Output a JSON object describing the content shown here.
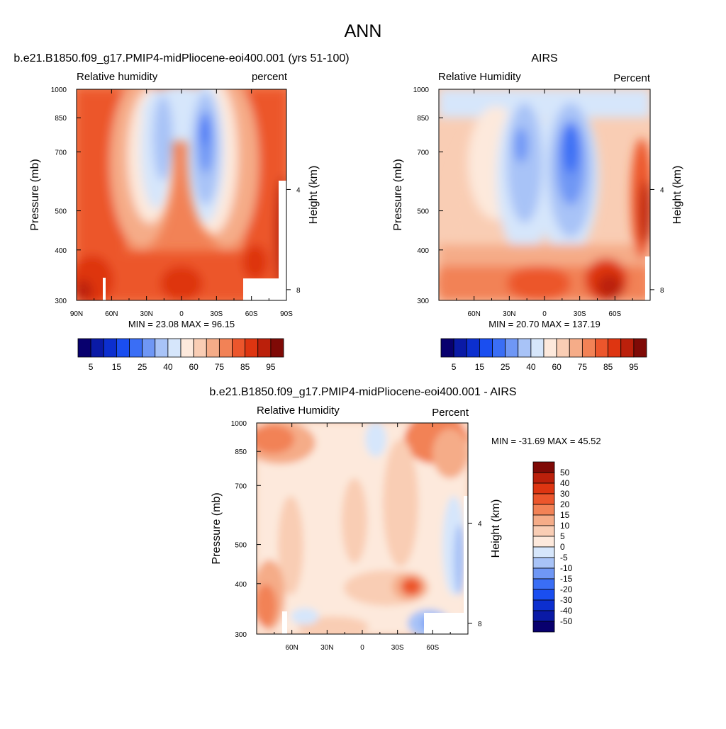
{
  "page_title": "ANN",
  "colors": {
    "rh_palette": [
      "#08006e",
      "#0a1aa6",
      "#0c2fcf",
      "#1a4ef0",
      "#3a6ef5",
      "#6f97f5",
      "#a8c3f7",
      "#d6e6fb",
      "#fde9dc",
      "#f9cdb4",
      "#f5ac88",
      "#f28256",
      "#ec562c",
      "#de3511",
      "#bb200b",
      "#7f0a06"
    ],
    "diff_palette": [
      "#08006e",
      "#0a1aa6",
      "#0c2fcf",
      "#1a4ef0",
      "#3a6ef5",
      "#6f97f5",
      "#a8c3f7",
      "#d6e6fb",
      "#fde9dc",
      "#f9cdb4",
      "#f5ac88",
      "#f28256",
      "#ec562c",
      "#de3511",
      "#bb200b",
      "#7f0a06"
    ]
  },
  "chart_data": [
    {
      "type": "heatmap",
      "id": "model",
      "title": "b.e21.B1850.f09_g17.PMIP4-midPliocene-eoi400.001 (yrs 51-100)",
      "left_label": "Relative humidity",
      "right_label": "percent",
      "xlabel": "",
      "ylabel": "Pressure (mb)",
      "y2label": "Height (km)",
      "x_ticklabels": [
        "90N",
        "60N",
        "30N",
        "0",
        "30S",
        "60S",
        "90S"
      ],
      "x_ticks": [
        90,
        60,
        30,
        0,
        -30,
        -60,
        -90
      ],
      "xlim": [
        90,
        -90
      ],
      "y_ticks": [
        300,
        400,
        500,
        700,
        850,
        1000
      ],
      "y_ticklabels": [
        "300",
        "400",
        "500",
        "700",
        "850",
        "1000"
      ],
      "ylim": [
        1000,
        300
      ],
      "y2_ticks": [
        8,
        4
      ],
      "y2_ticklabels": [
        "8",
        "4"
      ],
      "stats": "MIN =  23.08  MAX =  96.15",
      "levels": [
        "5",
        "15",
        "25",
        "40",
        "60",
        "75",
        "85",
        "95"
      ],
      "levels_units": "percent"
    },
    {
      "type": "heatmap",
      "id": "obs",
      "title": "AIRS",
      "left_label": "Relative Humidity",
      "right_label": "Percent",
      "ylabel": "Pressure (mb)",
      "y2label": "Height (km)",
      "x_ticklabels": [
        "60N",
        "30N",
        "0",
        "30S",
        "60S"
      ],
      "x_ticks": [
        60,
        30,
        0,
        -30,
        -60
      ],
      "xlim": [
        90,
        -90
      ],
      "y_ticks": [
        300,
        400,
        500,
        700,
        850,
        1000
      ],
      "y_ticklabels": [
        "300",
        "400",
        "500",
        "700",
        "850",
        "1000"
      ],
      "ylim": [
        1000,
        300
      ],
      "y2_ticks": [
        8,
        4
      ],
      "y2_ticklabels": [
        "8",
        "4"
      ],
      "stats": "MIN =  20.70  MAX = 137.19",
      "levels": [
        "5",
        "15",
        "25",
        "40",
        "60",
        "75",
        "85",
        "95"
      ]
    },
    {
      "type": "heatmap",
      "id": "diff",
      "title": "b.e21.B1850.f09_g17.PMIP4-midPliocene-eoi400.001 - AIRS",
      "left_label": "Relative Humidity",
      "right_label": "Percent",
      "ylabel": "Pressure (mb)",
      "y2label": "Height (km)",
      "x_ticklabels": [
        "60N",
        "30N",
        "0",
        "30S",
        "60S"
      ],
      "x_ticks": [
        60,
        30,
        0,
        -30,
        -60
      ],
      "xlim": [
        90,
        -90
      ],
      "y_ticks": [
        300,
        400,
        500,
        700,
        850,
        1000
      ],
      "y_ticklabels": [
        "300",
        "400",
        "500",
        "700",
        "850",
        "1000"
      ],
      "ylim": [
        1000,
        300
      ],
      "y2_ticks": [
        8,
        4
      ],
      "y2_ticklabels": [
        "8",
        "4"
      ],
      "stats": "MIN = -31.69  MAX =  45.52",
      "levels": [
        "50",
        "40",
        "30",
        "20",
        "15",
        "10",
        "5",
        "0",
        "-5",
        "-10",
        "-15",
        "-20",
        "-30",
        "-40",
        "-50"
      ]
    }
  ]
}
